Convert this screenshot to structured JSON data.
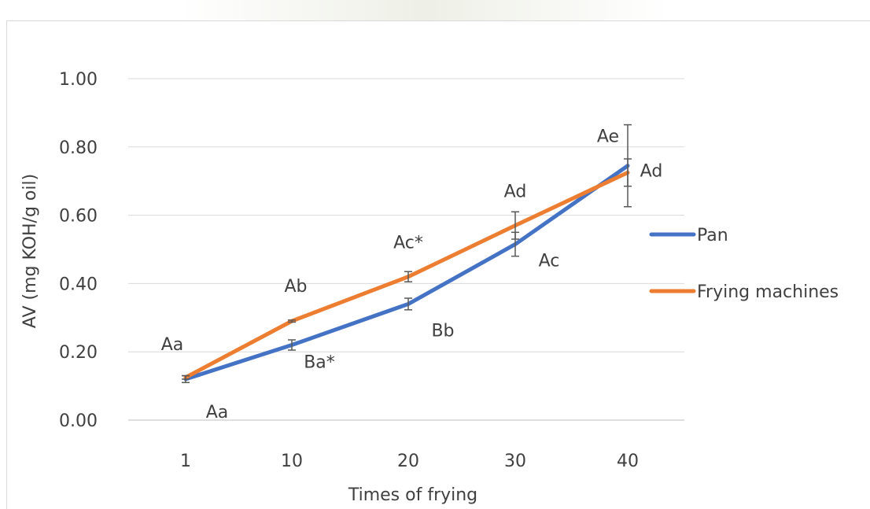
{
  "chart_data": {
    "type": "line",
    "title": "",
    "xlabel": "Times of frying",
    "ylabel": "AV (mg KOH/g oil)",
    "categories": [
      "1",
      "10",
      "20",
      "30",
      "40"
    ],
    "ylim": [
      0,
      1.0
    ],
    "yticks": [
      "0.00",
      "0.20",
      "0.40",
      "0.60",
      "0.80",
      "1.00"
    ],
    "grid": true,
    "legend_position": "right",
    "series": [
      {
        "name": "Pan",
        "color": "#4472c4",
        "values": [
          0.12,
          0.22,
          0.34,
          0.515,
          0.745
        ],
        "errors": [
          0.01,
          0.015,
          0.017,
          0.035,
          0.12
        ],
        "labels": [
          "Aa",
          "Ba*",
          "Bb",
          "Ac",
          "Ae"
        ]
      },
      {
        "name": "Frying machines",
        "color": "#ed7d31",
        "values": [
          0.125,
          0.29,
          0.42,
          0.57,
          0.725
        ],
        "errors": [
          0.005,
          0.003,
          0.015,
          0.04,
          0.04
        ],
        "labels": [
          "Aa",
          "Ab",
          "Ac*",
          "Ad",
          "Ad"
        ]
      }
    ]
  }
}
